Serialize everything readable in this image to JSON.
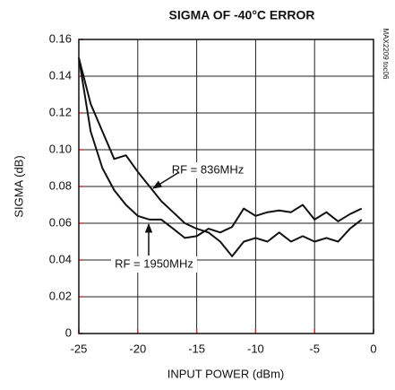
{
  "chart_data": {
    "type": "line",
    "title": "SIGMA OF -40°C ERROR",
    "xlabel": "INPUT POWER (dBm)",
    "ylabel": "SIGMA (dB)",
    "note": "MAX2209 toc06",
    "x": [
      -25,
      -24,
      -23,
      -22,
      -21,
      -20,
      -19,
      -18,
      -17,
      -16,
      -15,
      -14,
      -13,
      -12,
      -11,
      -10,
      -9,
      -8,
      -7,
      -6,
      -5,
      -4,
      -3,
      -2,
      -1
    ],
    "series": [
      {
        "name": "RF = 836MHz",
        "color": "#111111",
        "values": [
          0.15,
          0.125,
          0.11,
          0.095,
          0.097,
          0.088,
          0.08,
          0.072,
          0.066,
          0.06,
          0.057,
          0.055,
          0.05,
          0.042,
          0.05,
          0.052,
          0.05,
          0.055,
          0.05,
          0.053,
          0.05,
          0.052,
          0.05,
          0.057,
          0.062
        ]
      },
      {
        "name": "RF = 1950MHz",
        "color": "#111111",
        "values": [
          0.15,
          0.11,
          0.09,
          0.078,
          0.07,
          0.064,
          0.062,
          0.062,
          0.057,
          0.052,
          0.053,
          0.057,
          0.055,
          0.058,
          0.068,
          0.064,
          0.066,
          0.067,
          0.066,
          0.07,
          0.062,
          0.066,
          0.061,
          0.065,
          0.068
        ]
      }
    ],
    "xlim": [
      -25,
      0
    ],
    "xticks": [
      -25,
      -20,
      -15,
      -10,
      -5,
      0
    ],
    "ylim": [
      0,
      0.16
    ],
    "yticks": [
      0,
      0.02,
      0.04,
      0.06,
      0.08,
      {
        "value": 0.1,
        "label": "0.10"
      },
      0.12,
      0.14,
      0.16
    ],
    "grid": true
  }
}
